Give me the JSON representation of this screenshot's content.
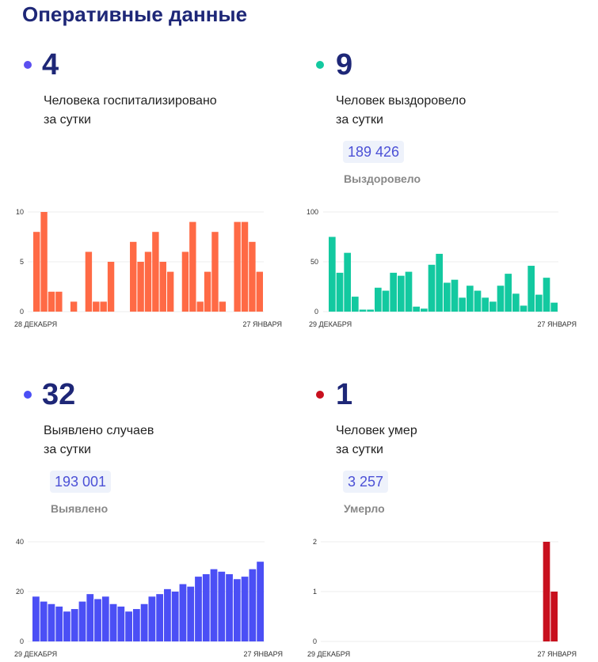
{
  "title": "Оперативные данные",
  "cards": [
    {
      "value": "4",
      "label1": "Человека госпитализировано",
      "label2": "за сутки",
      "color": "#5b4ff0"
    },
    {
      "value": "9",
      "label1": "Человек выздоровело",
      "label2": "за сутки",
      "total": "189 426",
      "total_label": "Выздоровело",
      "color": "#13c9a0"
    },
    {
      "value": "32",
      "label1": "Выявлено случаев",
      "label2": "за сутки",
      "total": "193 001",
      "total_label": "Выявлено",
      "color": "#4b4ff5"
    },
    {
      "value": "1",
      "label1": "Человек умер",
      "label2": "за сутки",
      "total": "3 257",
      "total_label": "Умерло",
      "color": "#c8101e"
    }
  ],
  "chart_data": [
    {
      "type": "bar",
      "title": "Госпитализировано",
      "color": "#ff6a45",
      "ylim": [
        0,
        10
      ],
      "yticks": [
        "0",
        "5",
        "10"
      ],
      "x_start": "28 ДЕКАБРЯ",
      "x_end": "27 ЯНВАРЯ",
      "values": [
        8,
        10,
        2,
        2,
        0,
        1,
        0,
        6,
        1,
        1,
        5,
        0,
        0,
        7,
        5,
        6,
        8,
        5,
        4,
        0,
        6,
        9,
        1,
        4,
        8,
        1,
        0,
        9,
        9,
        7,
        4
      ]
    },
    {
      "type": "bar",
      "title": "Выздоровело",
      "color": "#13c9a0",
      "ylim": [
        0,
        100
      ],
      "yticks": [
        "0",
        "50",
        "100"
      ],
      "x_start": "29 ДЕКАБРЯ",
      "x_end": "27 ЯНВАРЯ",
      "values": [
        75,
        39,
        59,
        15,
        2,
        2,
        24,
        21,
        39,
        36,
        40,
        5,
        3,
        47,
        58,
        29,
        32,
        14,
        26,
        21,
        14,
        10,
        26,
        38,
        18,
        6,
        46,
        17,
        34,
        9
      ]
    },
    {
      "type": "bar",
      "title": "Выявлено",
      "color": "#4b4ff5",
      "ylim": [
        0,
        40
      ],
      "yticks": [
        "0",
        "20",
        "40"
      ],
      "x_start": "29 ДЕКАБРЯ",
      "x_end": "27 ЯНВАРЯ",
      "values": [
        18,
        16,
        15,
        14,
        12,
        13,
        16,
        19,
        17,
        18,
        15,
        14,
        12,
        13,
        15,
        18,
        19,
        21,
        20,
        23,
        22,
        26,
        27,
        29,
        28,
        27,
        25,
        26,
        29,
        32
      ]
    },
    {
      "type": "bar",
      "title": "Умерло",
      "color": "#c8101e",
      "ylim": [
        0,
        2
      ],
      "yticks": [
        "0",
        "1",
        "2"
      ],
      "x_start": "29 ДЕКАБРЯ",
      "x_end": "27 ЯНВАРЯ",
      "values": [
        0,
        0,
        0,
        0,
        0,
        0,
        0,
        0,
        0,
        0,
        0,
        0,
        0,
        0,
        0,
        0,
        0,
        0,
        0,
        0,
        0,
        0,
        0,
        0,
        0,
        0,
        0,
        0,
        2,
        1
      ]
    }
  ]
}
